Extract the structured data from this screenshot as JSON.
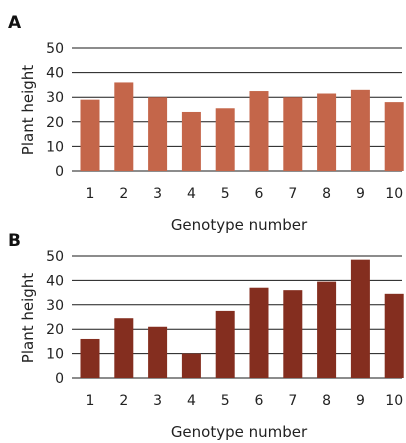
{
  "chart_data": [
    {
      "type": "bar",
      "panel_label": "A",
      "categories": [
        "1",
        "2",
        "3",
        "4",
        "5",
        "6",
        "7",
        "8",
        "9",
        "10"
      ],
      "values": [
        29,
        36,
        30,
        24,
        25.5,
        32.5,
        30,
        31.5,
        33,
        28
      ],
      "xlabel": "Genotype number",
      "ylabel": "Plant height",
      "ylim": [
        0,
        50
      ],
      "yticks": [
        "0",
        "10",
        "20",
        "30",
        "40",
        "50"
      ],
      "grid": true,
      "color": "#c4664a"
    },
    {
      "type": "bar",
      "panel_label": "B",
      "categories": [
        "1",
        "2",
        "3",
        "4",
        "5",
        "6",
        "7",
        "8",
        "9",
        "10"
      ],
      "values": [
        16,
        24.5,
        21,
        10,
        27.5,
        37,
        36,
        39.5,
        48.5,
        34.5
      ],
      "xlabel": "Genotype number",
      "ylabel": "Plant height",
      "ylim": [
        0,
        50
      ],
      "yticks": [
        "0",
        "10",
        "20",
        "30",
        "40",
        "50"
      ],
      "grid": true,
      "color": "#842e1f"
    }
  ]
}
